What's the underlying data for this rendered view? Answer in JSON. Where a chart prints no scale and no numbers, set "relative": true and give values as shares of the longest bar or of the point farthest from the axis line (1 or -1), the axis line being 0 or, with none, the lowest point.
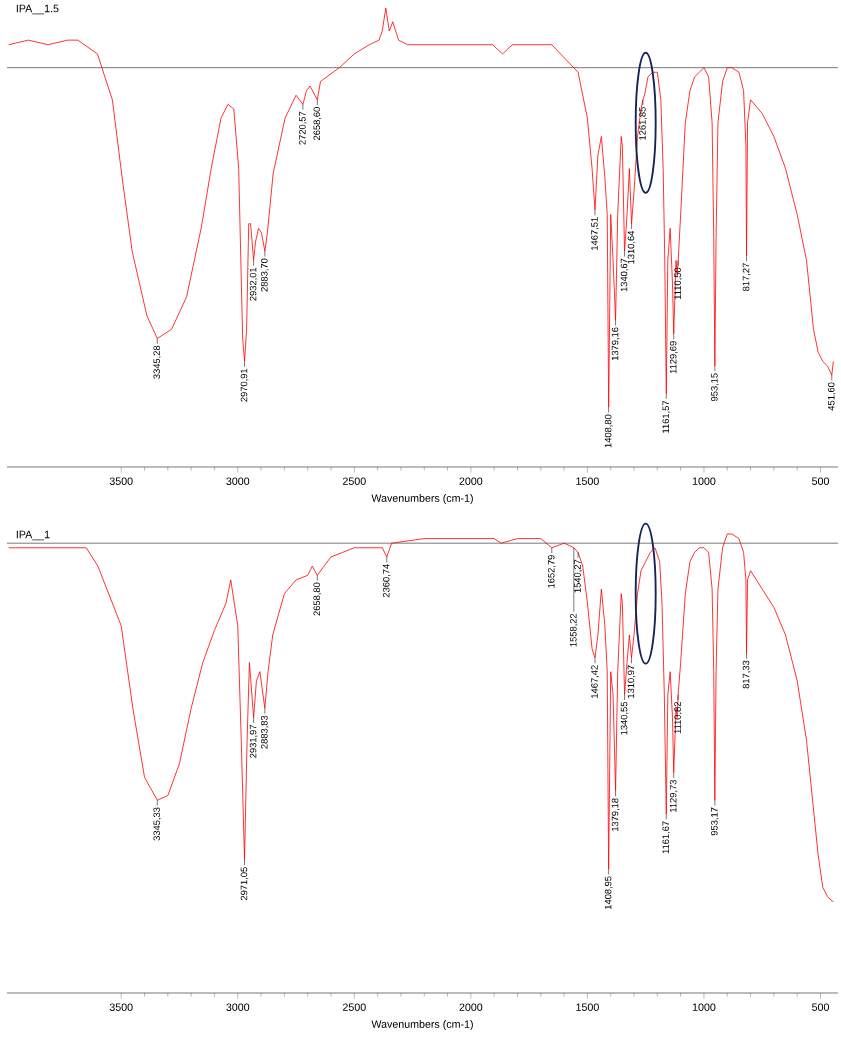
{
  "chart_data": [
    {
      "type": "line",
      "title": "IPA__1.5",
      "xlabel": "Wavenumbers (cm-1)",
      "relative": true,
      "xlim": [
        3990,
        425
      ],
      "xticks": [
        3500,
        3000,
        2500,
        2000,
        1500,
        1000,
        500
      ],
      "x": [
        3983,
        3898,
        3814,
        3729,
        3686,
        3602,
        3538,
        3496,
        3453,
        3390,
        3345.28,
        3284,
        3220,
        3157,
        3114,
        3072,
        3042,
        3017,
        2996,
        2979,
        2970.91,
        2962,
        2953,
        2945,
        2932.01,
        2924,
        2911,
        2898,
        2883.7,
        2873,
        2848,
        2797,
        2750,
        2720.57,
        2705,
        2690,
        2658.6,
        2645,
        2564,
        2500,
        2436,
        2394,
        2380,
        2365,
        2350,
        2335,
        2310,
        2271,
        2119,
        1907,
        1864,
        1822,
        1653,
        1540,
        1500,
        1480,
        1467.51,
        1455,
        1440,
        1425,
        1415,
        1408.8,
        1400,
        1390,
        1379.16,
        1370,
        1355,
        1350,
        1340.67,
        1330,
        1320,
        1310.64,
        1300,
        1285,
        1270,
        1261.85,
        1255,
        1240,
        1220,
        1200,
        1185,
        1175,
        1168,
        1161.57,
        1155,
        1145,
        1135,
        1129.69,
        1120,
        1115,
        1110.5,
        1100,
        1080,
        1060,
        1040,
        1020,
        1000,
        980,
        965,
        958,
        953.15,
        948,
        940,
        920,
        900,
        880,
        850,
        830,
        820,
        817.27,
        813,
        800,
        750,
        700,
        650,
        600,
        560,
        530,
        510,
        490,
        470,
        451.6,
        445
      ],
      "series": [
        {
          "color": "#ff0000",
          "values": [
            0.92,
            0.93,
            0.92,
            0.93,
            0.93,
            0.9,
            0.8,
            0.63,
            0.47,
            0.33,
            0.28,
            0.3,
            0.37,
            0.52,
            0.65,
            0.76,
            0.79,
            0.78,
            0.65,
            0.28,
            0.23,
            0.3,
            0.53,
            0.53,
            0.45,
            0.49,
            0.52,
            0.51,
            0.47,
            0.51,
            0.64,
            0.76,
            0.81,
            0.79,
            0.82,
            0.83,
            0.8,
            0.84,
            0.87,
            0.9,
            0.92,
            0.93,
            0.95,
            1.0,
            0.95,
            0.97,
            0.93,
            0.92,
            0.92,
            0.92,
            0.9,
            0.92,
            0.92,
            0.86,
            0.76,
            0.65,
            0.56,
            0.68,
            0.72,
            0.63,
            0.55,
            0.13,
            0.55,
            0.45,
            0.32,
            0.55,
            0.72,
            0.7,
            0.47,
            0.55,
            0.65,
            0.53,
            0.6,
            0.72,
            0.78,
            0.8,
            0.81,
            0.85,
            0.86,
            0.86,
            0.8,
            0.65,
            0.45,
            0.16,
            0.45,
            0.52,
            0.4,
            0.29,
            0.45,
            0.42,
            0.45,
            0.55,
            0.75,
            0.82,
            0.85,
            0.86,
            0.87,
            0.85,
            0.75,
            0.5,
            0.22,
            0.5,
            0.75,
            0.84,
            0.87,
            0.87,
            0.86,
            0.82,
            0.7,
            0.46,
            0.75,
            0.8,
            0.77,
            0.72,
            0.65,
            0.55,
            0.45,
            0.3,
            0.25,
            0.23,
            0.22,
            0.2,
            0.23
          ]
        }
      ],
      "ref_lines": [
        {
          "axis": "y",
          "value": 0.87,
          "color": "#000000"
        }
      ],
      "annotations": [
        {
          "text": "3345,28",
          "x": 3345.28,
          "y": 0.28
        },
        {
          "text": "2970,91",
          "x": 2970.91,
          "y": 0.23
        },
        {
          "text": "2932,01",
          "x": 2932.01,
          "y": 0.45
        },
        {
          "text": "2883,70",
          "x": 2883.7,
          "y": 0.47
        },
        {
          "text": "2720,57",
          "x": 2720.57,
          "y": 0.79
        },
        {
          "text": "2658,60",
          "x": 2658.6,
          "y": 0.8
        },
        {
          "text": "1467,51",
          "x": 1467.51,
          "y": 0.56
        },
        {
          "text": "1408,80",
          "x": 1408.8,
          "y": 0.13
        },
        {
          "text": "1379,16",
          "x": 1379.16,
          "y": 0.32
        },
        {
          "text": "1340,67",
          "x": 1340.67,
          "y": 0.47
        },
        {
          "text": "1310,64",
          "x": 1310.64,
          "y": 0.53
        },
        {
          "text": "1261,85",
          "x": 1261.85,
          "y": 0.8
        },
        {
          "text": "1161,57",
          "x": 1161.57,
          "y": 0.16
        },
        {
          "text": "1129,69",
          "x": 1129.69,
          "y": 0.29
        },
        {
          "text": "1110,50",
          "x": 1110.5,
          "y": 0.45
        },
        {
          "text": "953,15",
          "x": 953.15,
          "y": 0.22
        },
        {
          "text": "817,27",
          "x": 817.27,
          "y": 0.46
        },
        {
          "text": "451,60",
          "x": 451.6,
          "y": 0.2
        }
      ]
    },
    {
      "type": "line",
      "title": "IPA__1",
      "xlabel": "Wavenumbers (cm-1)",
      "relative": true,
      "xlim": [
        3990,
        425
      ],
      "xticks": [
        3500,
        3000,
        2500,
        2000,
        1500,
        1000,
        500
      ],
      "x": [
        3983,
        3800,
        3650,
        3600,
        3500,
        3450,
        3400,
        3345.33,
        3300,
        3250,
        3200,
        3150,
        3100,
        3050,
        3030,
        3000,
        2985,
        2971.05,
        2960,
        2950,
        2931.97,
        2920,
        2905,
        2883.83,
        2870,
        2850,
        2800,
        2750,
        2700,
        2680,
        2658.8,
        2630,
        2600,
        2550,
        2500,
        2450,
        2400,
        2380,
        2360.74,
        2340,
        2200,
        2000,
        1900,
        1870,
        1800,
        1700,
        1652.79,
        1600,
        1558.22,
        1540.27,
        1520,
        1500,
        1480,
        1467.42,
        1455,
        1440,
        1425,
        1415,
        1408.95,
        1400,
        1390,
        1379.18,
        1370,
        1355,
        1350,
        1340.55,
        1330,
        1320,
        1310.97,
        1300,
        1285,
        1270,
        1250,
        1230,
        1210,
        1190,
        1180,
        1170,
        1161.67,
        1155,
        1145,
        1135,
        1129.73,
        1120,
        1115,
        1110.82,
        1100,
        1080,
        1060,
        1040,
        1020,
        1000,
        980,
        965,
        958,
        953.17,
        948,
        940,
        920,
        900,
        880,
        850,
        830,
        820,
        817.33,
        813,
        800,
        750,
        700,
        650,
        600,
        560,
        530,
        510,
        490,
        470,
        450,
        445
      ],
      "series": [
        {
          "color": "#ff0000",
          "values": [
            0.97,
            0.97,
            0.97,
            0.93,
            0.8,
            0.62,
            0.47,
            0.42,
            0.43,
            0.5,
            0.62,
            0.72,
            0.79,
            0.85,
            0.9,
            0.8,
            0.55,
            0.29,
            0.55,
            0.72,
            0.6,
            0.68,
            0.7,
            0.62,
            0.7,
            0.78,
            0.87,
            0.9,
            0.91,
            0.93,
            0.91,
            0.93,
            0.95,
            0.96,
            0.97,
            0.97,
            0.97,
            0.97,
            0.95,
            0.98,
            0.99,
            0.99,
            0.99,
            0.98,
            0.99,
            0.99,
            0.97,
            0.98,
            0.97,
            0.96,
            0.93,
            0.85,
            0.75,
            0.73,
            0.78,
            0.88,
            0.8,
            0.7,
            0.27,
            0.7,
            0.65,
            0.44,
            0.7,
            0.87,
            0.85,
            0.65,
            0.72,
            0.78,
            0.73,
            0.78,
            0.87,
            0.92,
            0.94,
            0.96,
            0.97,
            0.94,
            0.85,
            0.65,
            0.39,
            0.65,
            0.7,
            0.6,
            0.48,
            0.62,
            0.6,
            0.65,
            0.72,
            0.87,
            0.94,
            0.96,
            0.97,
            0.97,
            0.96,
            0.88,
            0.7,
            0.42,
            0.7,
            0.88,
            0.97,
            1.0,
            1.0,
            0.99,
            0.96,
            0.9,
            0.74,
            0.9,
            0.92,
            0.88,
            0.84,
            0.78,
            0.68,
            0.55,
            0.4,
            0.3,
            0.23,
            0.21,
            0.2,
            0.2
          ]
        }
      ],
      "ref_lines": [
        {
          "axis": "y",
          "value": 0.98,
          "color": "#000000"
        }
      ],
      "annotations": [
        {
          "text": "3345,33",
          "x": 3345.33,
          "y": 0.42
        },
        {
          "text": "2971,05",
          "x": 2971.05,
          "y": 0.29
        },
        {
          "text": "2931,97",
          "x": 2931.97,
          "y": 0.6
        },
        {
          "text": "2883,83",
          "x": 2883.83,
          "y": 0.62
        },
        {
          "text": "2658,80",
          "x": 2658.8,
          "y": 0.91
        },
        {
          "text": "2360,74",
          "x": 2360.74,
          "y": 0.95
        },
        {
          "text": "1652,79",
          "x": 1652.79,
          "y": 0.97
        },
        {
          "text": "1558,22",
          "x": 1558.22,
          "y": 0.97
        },
        {
          "text": "1540,27",
          "x": 1540.27,
          "y": 0.96
        },
        {
          "text": "1467,42",
          "x": 1467.42,
          "y": 0.73
        },
        {
          "text": "1408,95",
          "x": 1408.95,
          "y": 0.27
        },
        {
          "text": "1379,18",
          "x": 1379.18,
          "y": 0.44
        },
        {
          "text": "1340,55",
          "x": 1340.55,
          "y": 0.65
        },
        {
          "text": "1310,97",
          "x": 1310.97,
          "y": 0.73
        },
        {
          "text": "1161,67",
          "x": 1161.67,
          "y": 0.39
        },
        {
          "text": "1129,73",
          "x": 1129.73,
          "y": 0.48
        },
        {
          "text": "1110,82",
          "x": 1110.82,
          "y": 0.65
        },
        {
          "text": "953,17",
          "x": 953.17,
          "y": 0.42
        },
        {
          "text": "817,33",
          "x": 817.33,
          "y": 0.74
        }
      ]
    }
  ]
}
